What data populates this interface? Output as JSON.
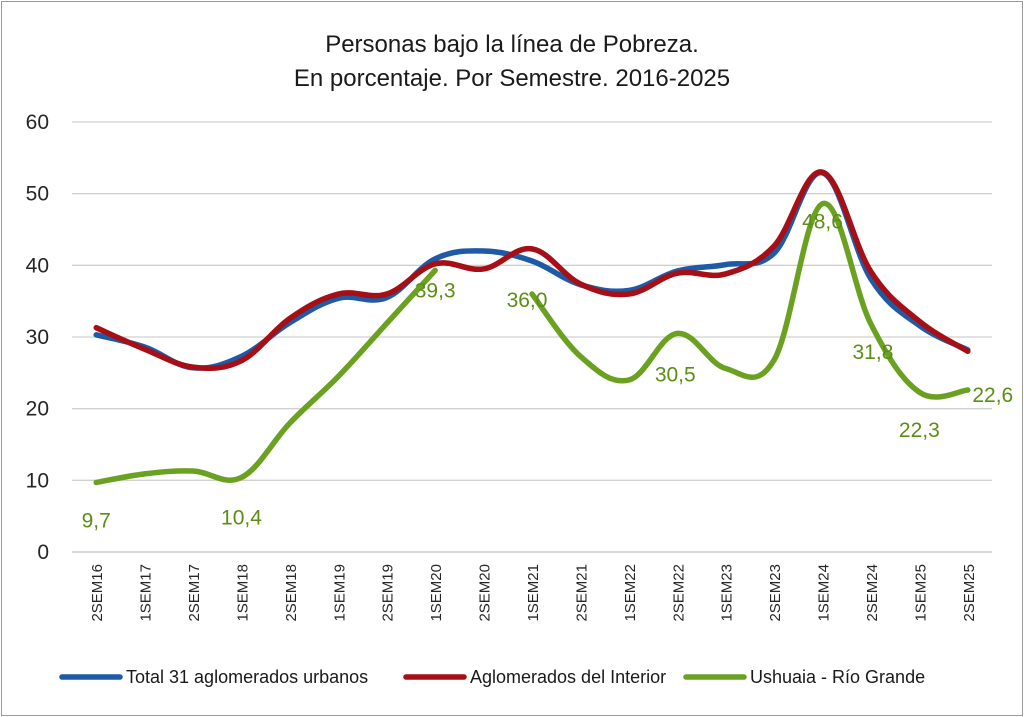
{
  "chart_data": {
    "type": "line",
    "title": [
      "Personas bajo la línea de Pobreza.",
      "En porcentaje. Por Semestre. 2016-2025"
    ],
    "categories": [
      "2SEM16",
      "1SEM17",
      "2SEM17",
      "1SEM18",
      "2SEM18",
      "1SEM19",
      "2SEM19",
      "1SEM20",
      "2SEM20",
      "1SEM21",
      "2SEM21",
      "1SEM22",
      "2SEM22",
      "1SEM23",
      "2SEM23",
      "1SEM24",
      "2SEM24",
      "1SEM25",
      "2SEM25"
    ],
    "ylim": [
      0,
      60
    ],
    "yticks": [
      "0",
      "10",
      "20",
      "30",
      "40",
      "50",
      "60"
    ],
    "grid": true,
    "legend_position": "bottom",
    "series": [
      {
        "name": "Total 31 aglomerados urbanos",
        "color": "#1f5aa6",
        "values": [
          30.3,
          28.6,
          25.7,
          27.3,
          32.0,
          35.4,
          35.5,
          40.9,
          42.0,
          40.6,
          37.3,
          36.5,
          39.2,
          40.1,
          41.7,
          52.9,
          38.1,
          31.6,
          28.2
        ]
      },
      {
        "name": "Aglomerados del Interior",
        "color": "#a50f15",
        "values": [
          31.3,
          28.3,
          25.8,
          26.7,
          32.6,
          36.0,
          36.0,
          40.2,
          39.5,
          42.3,
          37.4,
          36.0,
          38.9,
          38.8,
          42.7,
          53.0,
          39.1,
          32.2,
          28.0
        ]
      },
      {
        "name": "Ushuaia - Río Grande",
        "color": "#6aa121",
        "values": [
          9.7,
          10.9,
          11.3,
          10.4,
          18.0,
          24.5,
          31.9,
          39.3,
          null,
          36.0,
          27.3,
          24.0,
          30.5,
          25.6,
          26.8,
          48.6,
          31.8,
          22.3,
          22.6
        ]
      }
    ],
    "data_labels": [
      {
        "series": 2,
        "index": 0,
        "text": "9,7"
      },
      {
        "series": 2,
        "index": 3,
        "text": "10,4"
      },
      {
        "series": 2,
        "index": 7,
        "text": "39,3"
      },
      {
        "series": 2,
        "index": 9,
        "text": "36,0"
      },
      {
        "series": 2,
        "index": 12,
        "text": "30,5"
      },
      {
        "series": 2,
        "index": 15,
        "text": "48,6"
      },
      {
        "series": 2,
        "index": 16,
        "text": "31,8"
      },
      {
        "series": 2,
        "index": 17,
        "text": "22,3"
      },
      {
        "series": 2,
        "index": 18,
        "text": "22,6"
      }
    ]
  }
}
